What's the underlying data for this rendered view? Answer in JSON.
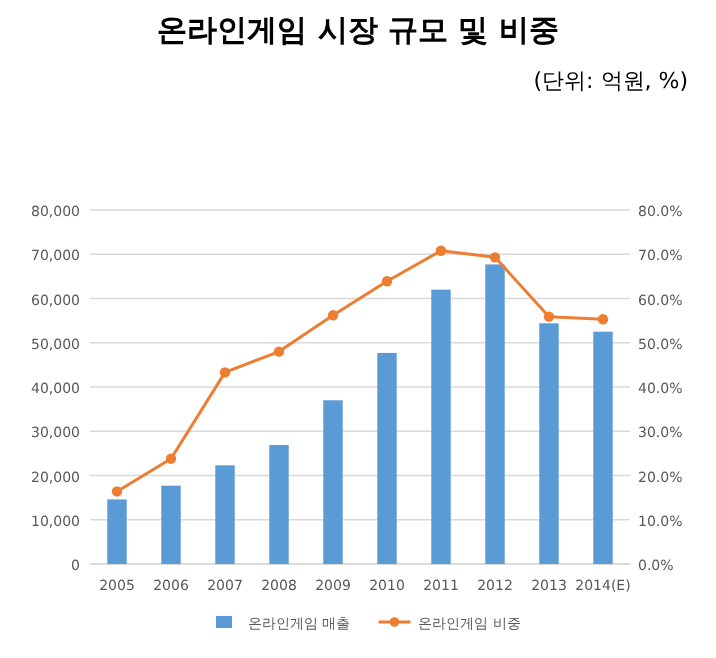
{
  "chart_data": {
    "type": "bar",
    "title": "온라인게임 시장 규모 및 비중",
    "subtitle": "(단위: 억원, %)",
    "categories": [
      "2005",
      "2006",
      "2007",
      "2008",
      "2009",
      "2010",
      "2011",
      "2012",
      "2013",
      "2014(E)"
    ],
    "series": [
      {
        "name": "온라인게임 매출",
        "color": "#5b9bd5",
        "values": [
          14600,
          17700,
          22300,
          26900,
          37000,
          47700,
          62000,
          67700,
          54400,
          52500
        ]
      },
      {
        "name": "온라인게임 비중",
        "type": "line",
        "axis": "y2",
        "color": "#ed7d31",
        "marker": "circle",
        "values": [
          16.4,
          23.8,
          43.3,
          48.0,
          56.2,
          63.9,
          70.8,
          69.3,
          55.9,
          55.3
        ]
      }
    ],
    "ylim": [
      0,
      80000
    ],
    "yticks": [
      {
        "value": 0,
        "label": "0"
      },
      {
        "value": 10000,
        "label": "10,000"
      },
      {
        "value": 20000,
        "label": "20,000"
      },
      {
        "value": 30000,
        "label": "30,000"
      },
      {
        "value": 40000,
        "label": "40,000"
      },
      {
        "value": 50000,
        "label": "50,000"
      },
      {
        "value": 60000,
        "label": "60,000"
      },
      {
        "value": 70000,
        "label": "70,000"
      },
      {
        "value": 80000,
        "label": "80,000"
      }
    ],
    "y2lim": [
      0,
      80
    ],
    "y2ticks": [
      {
        "value": 0,
        "label": "0.0%"
      },
      {
        "value": 10,
        "label": "10.0%"
      },
      {
        "value": 20,
        "label": "20.0%"
      },
      {
        "value": 30,
        "label": "30.0%"
      },
      {
        "value": 40,
        "label": "40.0%"
      },
      {
        "value": 50,
        "label": "50.0%"
      },
      {
        "value": 60,
        "label": "60.0%"
      },
      {
        "value": 70,
        "label": "70.0%"
      },
      {
        "value": 80,
        "label": "80.0%"
      }
    ],
    "grid": "y",
    "legend": "bottom"
  }
}
